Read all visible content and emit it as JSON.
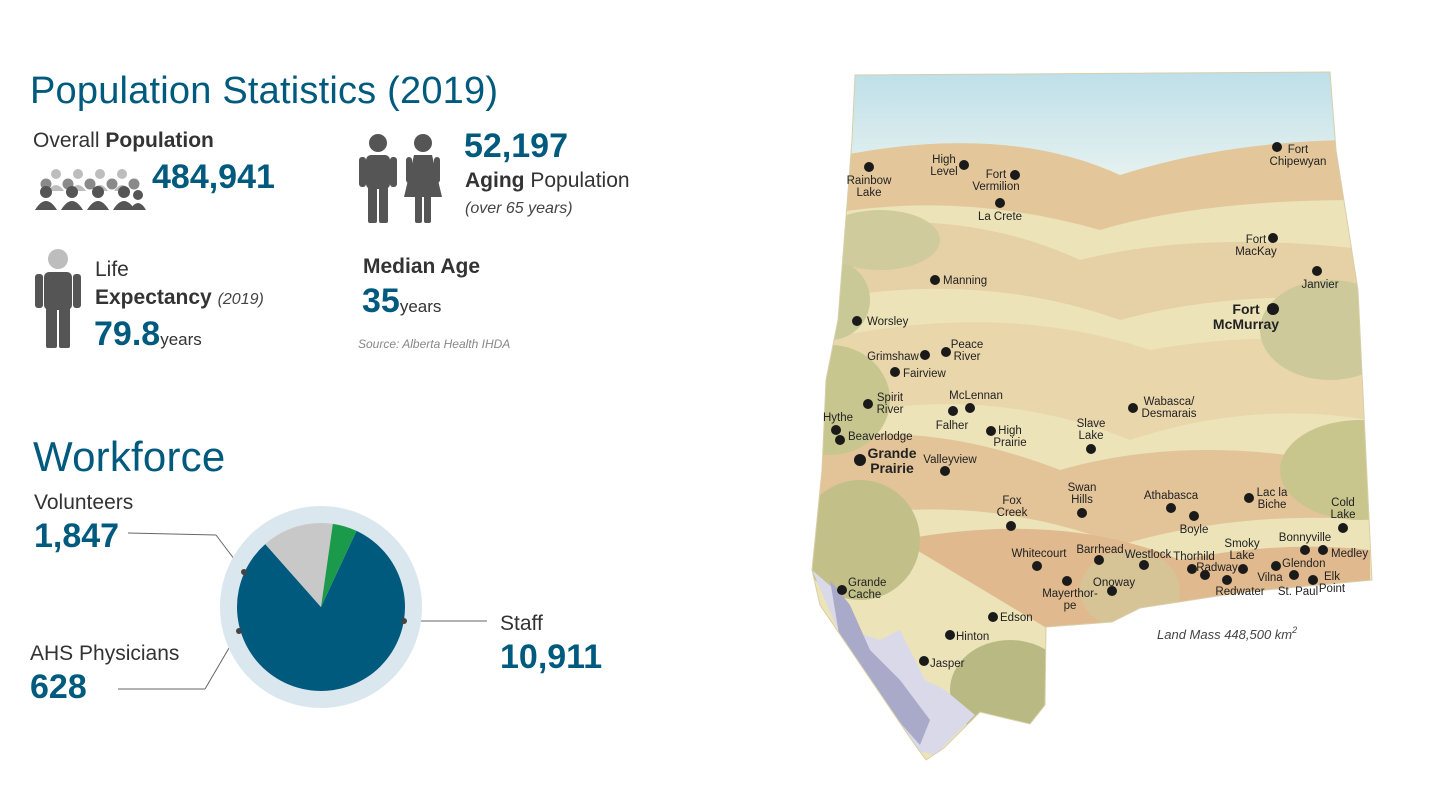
{
  "population": {
    "title": "Population Statistics (2019)",
    "overall_label_a": "Overall",
    "overall_label_b": "Population",
    "overall_value": "484,941",
    "aging_value": "52,197",
    "aging_label_a": "Aging",
    "aging_label_b": "Population",
    "aging_note": "(over 65 years)",
    "life_label_a": "Life",
    "life_label_b": "Expectancy",
    "life_year": "(2019)",
    "life_value": "79.8",
    "life_unit": "years",
    "median_label": "Median Age",
    "median_value": "35",
    "median_unit": "years",
    "source": "Source: Alberta Health IHDA"
  },
  "workforce": {
    "title": "Workforce",
    "volunteers_label": "Volunteers",
    "volunteers_value": "1,847",
    "physicians_label": "AHS Physicians",
    "physicians_value": "628",
    "staff_label": "Staff",
    "staff_value": "10,911",
    "colors": {
      "staff": "#005a7e",
      "volunteers": "#c8c8c8",
      "physicians": "#1a9a4a",
      "ring": "#dbe7ee"
    }
  },
  "chart_data": {
    "type": "pie",
    "categories": [
      "Staff",
      "Volunteers",
      "AHS Physicians"
    ],
    "values": [
      10911,
      1847,
      628
    ]
  },
  "map": {
    "land_mass_label": "Land Mass 448,500 km",
    "land_mass_sup": "2",
    "cities": [
      {
        "name": "Fort",
        "name2": "Chipewyan"
      },
      {
        "name": "High",
        "name2": "Level"
      },
      {
        "name": "Fort",
        "name2": "Vermilion"
      },
      {
        "name": "Rainbow",
        "name2": "Lake"
      },
      {
        "name": "La Crete"
      },
      {
        "name": "Fort",
        "name2": "MacKay"
      },
      {
        "name": "Janvier"
      },
      {
        "name": "Manning"
      },
      {
        "name": "Fort",
        "name2": "McMurray"
      },
      {
        "name": "Worsley"
      },
      {
        "name": "Peace",
        "name2": "River"
      },
      {
        "name": "Grimshaw"
      },
      {
        "name": "Fairview"
      },
      {
        "name": "Spirit",
        "name2": "River"
      },
      {
        "name": "McLennan"
      },
      {
        "name": "Falher"
      },
      {
        "name": "Hythe"
      },
      {
        "name": "Beaverlodge"
      },
      {
        "name": "High",
        "name2": "Prairie"
      },
      {
        "name": "Wabasca/",
        "name2": "Desmarais"
      },
      {
        "name": "Slave",
        "name2": "Lake"
      },
      {
        "name": "Grande",
        "name2": "Prairie"
      },
      {
        "name": "Valleyview"
      },
      {
        "name": "Swan",
        "name2": "Hills"
      },
      {
        "name": "Athabasca"
      },
      {
        "name": "Lac la",
        "name2": "Biche"
      },
      {
        "name": "Cold",
        "name2": "Lake"
      },
      {
        "name": "Fox",
        "name2": "Creek"
      },
      {
        "name": "Boyle"
      },
      {
        "name": "Bonnyville"
      },
      {
        "name": "Medley"
      },
      {
        "name": "Whitecourt"
      },
      {
        "name": "Barrhead"
      },
      {
        "name": "Westlock"
      },
      {
        "name": "Thorhild"
      },
      {
        "name": "Smoky",
        "name2": "Lake"
      },
      {
        "name": "Glendon"
      },
      {
        "name": "Radway"
      },
      {
        "name": "Vilna"
      },
      {
        "name": "Elk",
        "name2": "Point"
      },
      {
        "name": "Redwater"
      },
      {
        "name": "St. Paul"
      },
      {
        "name": "Onoway"
      },
      {
        "name": "Mayerthor-",
        "name2": "pe"
      },
      {
        "name": "Grande",
        "name2": "Cache"
      },
      {
        "name": "Edson"
      },
      {
        "name": "Hinton"
      },
      {
        "name": "Jasper"
      }
    ]
  }
}
